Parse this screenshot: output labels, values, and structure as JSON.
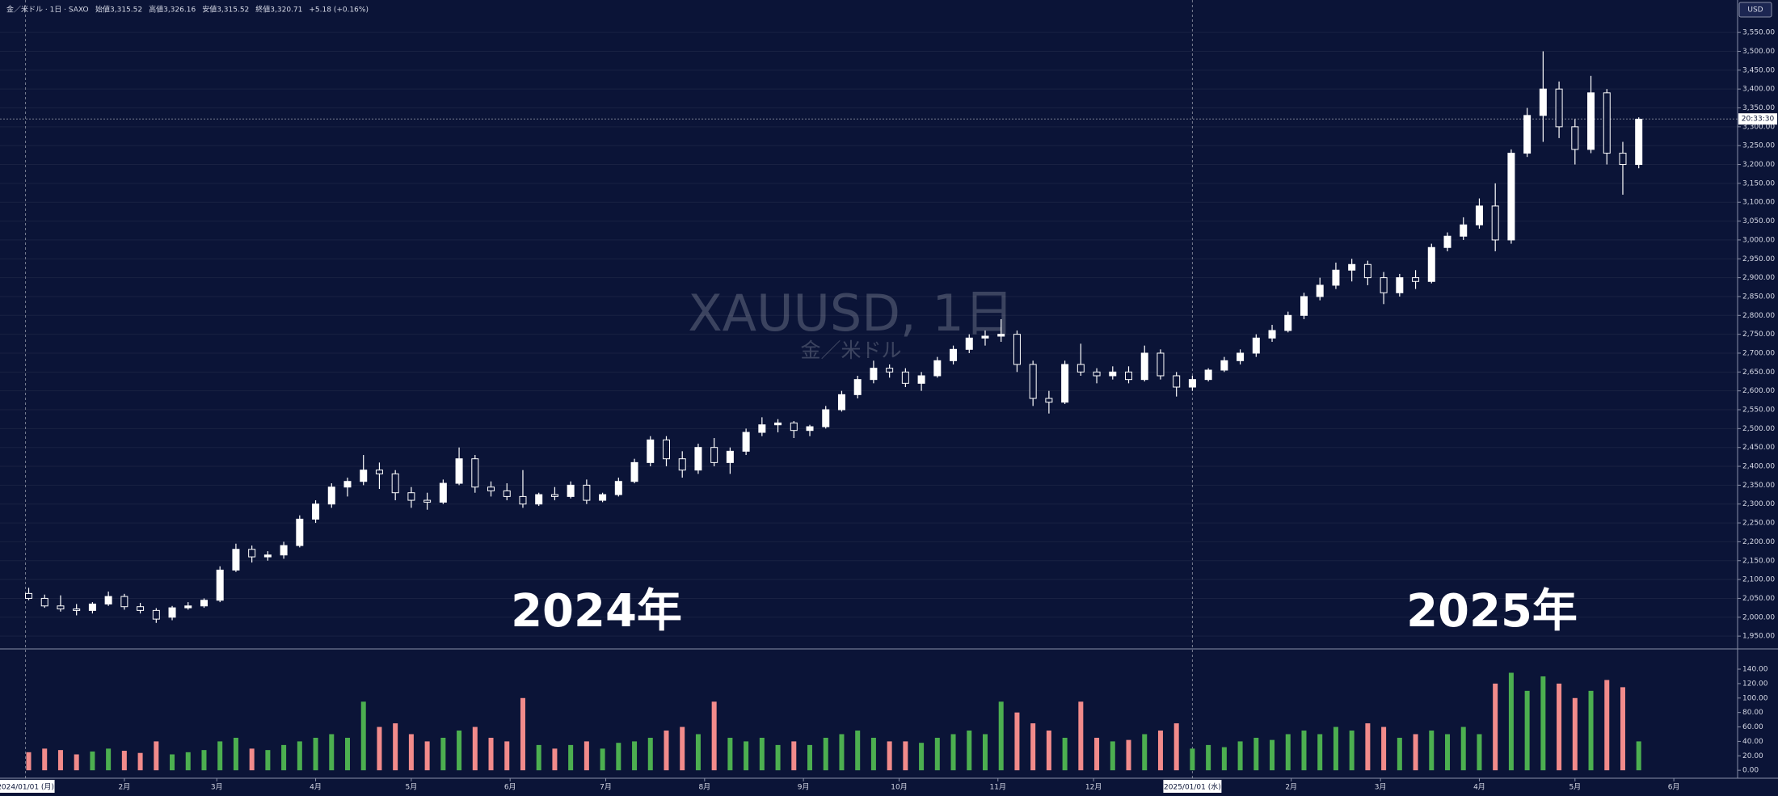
{
  "header": {
    "symbol": "金／米ドル · 1日 · SAXO",
    "ohlc": [
      "始値3,315.52",
      "高値3,326.16",
      "安値3,315.52",
      "終値3,320.71",
      "+5.18 (+0.16%)"
    ],
    "currency": "USD"
  },
  "watermark": {
    "title": "XAUUSD, 1日",
    "subtitle": "金／米ドル"
  },
  "annotations": [
    "2024年",
    "2025年"
  ],
  "crosshair": [
    {
      "value": 0,
      "label": "2024/01/01 (月)"
    },
    {
      "value": 366,
      "label": "2025/01/01 (水)"
    }
  ],
  "price_line": {
    "value": 3320.71,
    "label": "20:33:30"
  },
  "chart_data": {
    "type": "candlestick",
    "color": "#ffffff",
    "x": [
      1,
      6,
      11,
      16,
      21,
      26,
      31,
      36,
      41,
      46,
      51,
      56,
      61,
      66,
      71,
      76,
      81,
      86,
      91,
      96,
      101,
      106,
      111,
      116,
      121,
      126,
      131,
      136,
      141,
      146,
      151,
      156,
      161,
      166,
      171,
      176,
      181,
      186,
      191,
      196,
      201,
      206,
      211,
      216,
      221,
      226,
      231,
      236,
      241,
      246,
      251,
      256,
      261,
      266,
      271,
      276,
      281,
      286,
      291,
      296,
      301,
      306,
      311,
      316,
      321,
      326,
      331,
      336,
      341,
      346,
      351,
      356,
      361,
      366,
      371,
      376,
      381,
      386,
      391,
      396,
      401,
      406,
      411,
      416,
      421,
      426,
      431,
      436,
      441,
      446,
      451,
      456,
      461,
      466,
      471,
      476,
      481,
      486,
      491,
      496,
      501,
      506
    ],
    "open": [
      2063,
      2050,
      2030,
      2022,
      2018,
      2035,
      2055,
      2028,
      2018,
      2000,
      2025,
      2030,
      2045,
      2125,
      2180,
      2160,
      2165,
      2190,
      2260,
      2300,
      2345,
      2360,
      2390,
      2380,
      2330,
      2310,
      2305,
      2355,
      2420,
      2345,
      2335,
      2320,
      2300,
      2325,
      2320,
      2350,
      2310,
      2325,
      2360,
      2410,
      2470,
      2420,
      2390,
      2450,
      2410,
      2440,
      2490,
      2510,
      2515,
      2495,
      2505,
      2550,
      2590,
      2630,
      2660,
      2650,
      2620,
      2640,
      2680,
      2710,
      2740,
      2745,
      2750,
      2670,
      2580,
      2570,
      2670,
      2650,
      2640,
      2650,
      2630,
      2700,
      2640,
      2610,
      2630,
      2655,
      2680,
      2700,
      2740,
      2760,
      2800,
      2850,
      2880,
      2920,
      2935,
      2900,
      2860,
      2900,
      2890,
      2980,
      3010,
      3040,
      3090,
      3000,
      3230,
      3330,
      3400,
      3300,
      3240,
      3390,
      3230,
      3200
    ],
    "high": [
      2078,
      2060,
      2058,
      2035,
      2040,
      2068,
      2062,
      2038,
      2024,
      2030,
      2040,
      2050,
      2135,
      2195,
      2190,
      2175,
      2200,
      2270,
      2310,
      2355,
      2370,
      2430,
      2410,
      2390,
      2345,
      2330,
      2365,
      2450,
      2430,
      2360,
      2355,
      2390,
      2330,
      2345,
      2360,
      2365,
      2330,
      2370,
      2420,
      2480,
      2480,
      2440,
      2460,
      2475,
      2450,
      2500,
      2530,
      2525,
      2520,
      2510,
      2560,
      2600,
      2640,
      2680,
      2670,
      2660,
      2650,
      2690,
      2720,
      2750,
      2760,
      2790,
      2760,
      2680,
      2600,
      2680,
      2725,
      2660,
      2665,
      2665,
      2720,
      2710,
      2650,
      2640,
      2660,
      2690,
      2710,
      2750,
      2775,
      2810,
      2860,
      2900,
      2940,
      2950,
      2945,
      2915,
      2910,
      2920,
      2990,
      3020,
      3060,
      3110,
      3150,
      3240,
      3350,
      3500,
      3420,
      3320,
      3435,
      3400,
      3260,
      3325
    ],
    "low": [
      2045,
      2025,
      2015,
      2005,
      2010,
      2030,
      2020,
      2010,
      1985,
      1992,
      2020,
      2025,
      2040,
      2120,
      2145,
      2150,
      2155,
      2185,
      2250,
      2290,
      2320,
      2350,
      2340,
      2310,
      2290,
      2285,
      2300,
      2350,
      2330,
      2320,
      2310,
      2290,
      2295,
      2310,
      2315,
      2300,
      2305,
      2320,
      2355,
      2400,
      2400,
      2370,
      2380,
      2400,
      2380,
      2430,
      2480,
      2490,
      2475,
      2480,
      2500,
      2545,
      2580,
      2620,
      2635,
      2610,
      2600,
      2635,
      2670,
      2700,
      2720,
      2730,
      2650,
      2560,
      2540,
      2565,
      2640,
      2620,
      2630,
      2620,
      2625,
      2630,
      2585,
      2600,
      2625,
      2650,
      2670,
      2690,
      2730,
      2755,
      2790,
      2840,
      2870,
      2890,
      2880,
      2830,
      2850,
      2870,
      2885,
      2970,
      3000,
      3030,
      2970,
      2990,
      3220,
      3260,
      3270,
      3200,
      3230,
      3200,
      3120,
      3190
    ],
    "close": [
      2050,
      2030,
      2022,
      2018,
      2035,
      2055,
      2028,
      2018,
      1995,
      2025,
      2030,
      2045,
      2125,
      2180,
      2160,
      2165,
      2190,
      2260,
      2300,
      2345,
      2360,
      2390,
      2380,
      2330,
      2310,
      2305,
      2355,
      2420,
      2345,
      2335,
      2320,
      2300,
      2325,
      2320,
      2350,
      2310,
      2325,
      2360,
      2410,
      2470,
      2420,
      2390,
      2450,
      2410,
      2440,
      2490,
      2510,
      2515,
      2495,
      2505,
      2550,
      2590,
      2630,
      2660,
      2650,
      2620,
      2640,
      2680,
      2710,
      2740,
      2745,
      2750,
      2670,
      2580,
      2570,
      2670,
      2650,
      2640,
      2650,
      2630,
      2700,
      2640,
      2610,
      2630,
      2655,
      2680,
      2700,
      2740,
      2760,
      2800,
      2850,
      2880,
      2920,
      2935,
      2900,
      2860,
      2900,
      2890,
      2980,
      3010,
      3040,
      3090,
      3000,
      3230,
      3330,
      3400,
      3300,
      3240,
      3390,
      3230,
      3200,
      3320
    ],
    "xlim": [
      -8,
      537
    ],
    "xticks": [
      {
        "value": 31,
        "label": "2月"
      },
      {
        "value": 60,
        "label": "3月"
      },
      {
        "value": 91,
        "label": "4月"
      },
      {
        "value": 121,
        "label": "5月"
      },
      {
        "value": 152,
        "label": "6月"
      },
      {
        "value": 182,
        "label": "7月"
      },
      {
        "value": 213,
        "label": "8月"
      },
      {
        "value": 244,
        "label": "9月"
      },
      {
        "value": 274,
        "label": "10月"
      },
      {
        "value": 305,
        "label": "11月"
      },
      {
        "value": 335,
        "label": "12月"
      },
      {
        "value": 397,
        "label": "2月"
      },
      {
        "value": 425,
        "label": "3月"
      },
      {
        "value": 456,
        "label": "4月"
      },
      {
        "value": 486,
        "label": "5月"
      },
      {
        "value": 517,
        "label": "6月"
      }
    ],
    "ylim": [
      1916,
      3636
    ],
    "yticks": [
      {
        "value": 1950,
        "label": "1,950.00"
      },
      {
        "value": 2000,
        "label": "2,000.00"
      },
      {
        "value": 2050,
        "label": "2,050.00"
      },
      {
        "value": 2100,
        "label": "2,100.00"
      },
      {
        "value": 2150,
        "label": "2,150.00"
      },
      {
        "value": 2200,
        "label": "2,200.00"
      },
      {
        "value": 2250,
        "label": "2,250.00"
      },
      {
        "value": 2300,
        "label": "2,300.00"
      },
      {
        "value": 2350,
        "label": "2,350.00"
      },
      {
        "value": 2400,
        "label": "2,400.00"
      },
      {
        "value": 2450,
        "label": "2,450.00"
      },
      {
        "value": 2500,
        "label": "2,500.00"
      },
      {
        "value": 2550,
        "label": "2,550.00"
      },
      {
        "value": 2600,
        "label": "2,600.00"
      },
      {
        "value": 2650,
        "label": "2,650.00"
      },
      {
        "value": 2700,
        "label": "2,700.00"
      },
      {
        "value": 2750,
        "label": "2,750.00"
      },
      {
        "value": 2800,
        "label": "2,800.00"
      },
      {
        "value": 2850,
        "label": "2,850.00"
      },
      {
        "value": 2900,
        "label": "2,900.00"
      },
      {
        "value": 2950,
        "label": "2,950.00"
      },
      {
        "value": 3000,
        "label": "3,000.00"
      },
      {
        "value": 3050,
        "label": "3,050.00"
      },
      {
        "value": 3100,
        "label": "3,100.00"
      },
      {
        "value": 3150,
        "label": "3,150.00"
      },
      {
        "value": 3200,
        "label": "3,200.00"
      },
      {
        "value": 3250,
        "label": "3,250.00"
      },
      {
        "value": 3300,
        "label": "3,300.00"
      },
      {
        "value": 3350,
        "label": "3,350.00"
      },
      {
        "value": 3400,
        "label": "3,400.00"
      },
      {
        "value": 3450,
        "label": "3,450.00"
      },
      {
        "value": 3500,
        "label": "3,500.00"
      },
      {
        "value": 3550,
        "label": "3,550.00"
      }
    ],
    "grid": true,
    "volume": {
      "up_color": "#4caf50",
      "down_color": "#f28b8b",
      "values": [
        25,
        30,
        28,
        22,
        26,
        30,
        27,
        24,
        40,
        22,
        25,
        28,
        40,
        45,
        30,
        28,
        35,
        40,
        45,
        50,
        45,
        95,
        60,
        65,
        50,
        40,
        45,
        55,
        60,
        45,
        40,
        100,
        35,
        30,
        35,
        40,
        30,
        38,
        40,
        45,
        55,
        60,
        50,
        95,
        45,
        40,
        45,
        35,
        40,
        35,
        45,
        50,
        55,
        45,
        40,
        40,
        38,
        45,
        50,
        55,
        50,
        95,
        80,
        65,
        55,
        45,
        95,
        45,
        40,
        42,
        50,
        55,
        65,
        30,
        35,
        32,
        40,
        45,
        42,
        50,
        55,
        50,
        60,
        55,
        65,
        60,
        45,
        50,
        55,
        50,
        60,
        50,
        120,
        135,
        110,
        130,
        120,
        100,
        110,
        125,
        115,
        40
      ],
      "ylim": [
        -11,
        168
      ],
      "yticks": [
        {
          "value": 0,
          "label": "0.00"
        },
        {
          "value": 20,
          "label": "20.00"
        },
        {
          "value": 40,
          "label": "40.00"
        },
        {
          "value": 60,
          "label": "60.00"
        },
        {
          "value": 80,
          "label": "80.00"
        },
        {
          "value": 100,
          "label": "100.00"
        },
        {
          "value": 120,
          "label": "120.00"
        },
        {
          "value": 140,
          "label": "140.00"
        }
      ]
    }
  }
}
